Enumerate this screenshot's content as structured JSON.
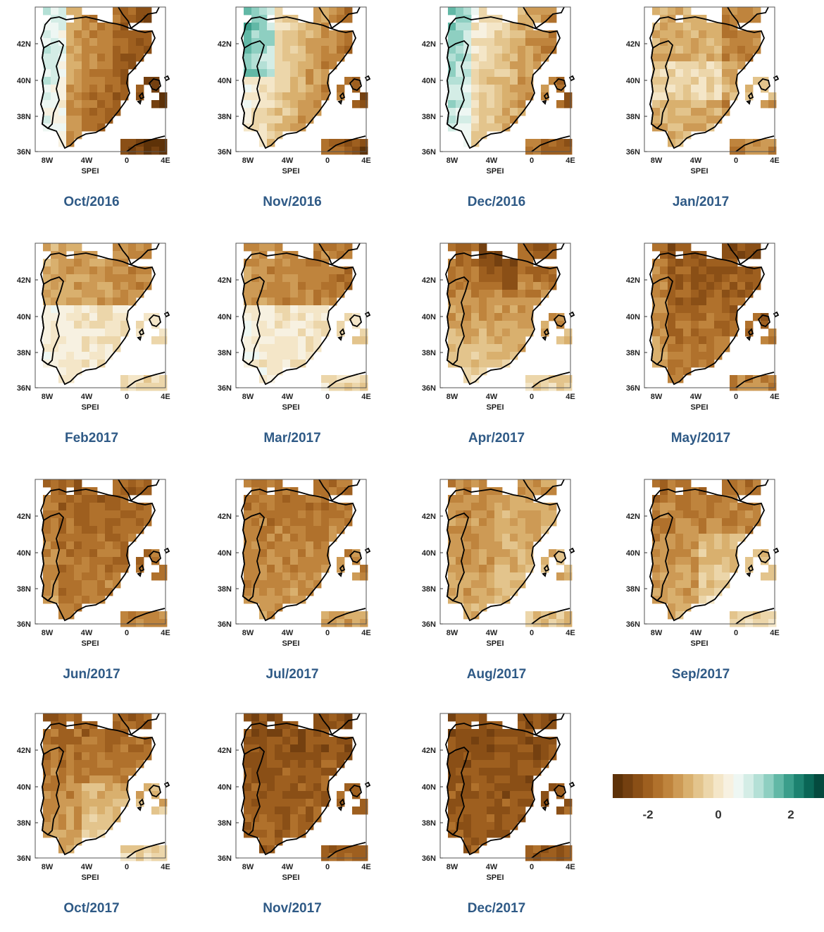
{
  "maps": [
    {
      "caption": "Oct/2016",
      "xlabel": "SPEI",
      "pattern": "oct16"
    },
    {
      "caption": "Nov/2016",
      "xlabel": "SPEI",
      "pattern": "nov16"
    },
    {
      "caption": "Dec/2016",
      "xlabel": "SPEI",
      "pattern": "dec16"
    },
    {
      "caption": "Jan/2017",
      "xlabel": "SPEI",
      "pattern": "jan17"
    },
    {
      "caption": "Feb2017",
      "xlabel": "SPEI",
      "pattern": "feb17"
    },
    {
      "caption": "Mar/2017",
      "xlabel": "SPEI",
      "pattern": "mar17"
    },
    {
      "caption": "Apr/2017",
      "xlabel": "SPEI",
      "pattern": "apr17"
    },
    {
      "caption": "May/2017",
      "xlabel": "SPEI",
      "pattern": "may17"
    },
    {
      "caption": "Jun/2017",
      "xlabel": "SPEI",
      "pattern": "jun17"
    },
    {
      "caption": "Jul/2017",
      "xlabel": "SPEI",
      "pattern": "jul17"
    },
    {
      "caption": "Aug/2017",
      "xlabel": "SPEI",
      "pattern": "aug17"
    },
    {
      "caption": "Sep/2017",
      "xlabel": "SPEI",
      "pattern": "sep17"
    },
    {
      "caption": "Oct/2017",
      "xlabel": "SPEI",
      "pattern": "oct17"
    },
    {
      "caption": "Nov/2017",
      "xlabel": "SPEI",
      "pattern": "nov17"
    },
    {
      "caption": "Dec/2017",
      "xlabel": "SPEI",
      "pattern": "dec17"
    }
  ],
  "axes": {
    "lat_ticks": [
      "42N",
      "40N",
      "38N",
      "36N"
    ],
    "lon_ticks": [
      "8W",
      "4W",
      "0",
      "4E"
    ]
  },
  "colorbar": {
    "ticks": [
      "-2",
      "0",
      "2"
    ],
    "colors": [
      "#5e3208",
      "#744010",
      "#8a4f16",
      "#9e5f1f",
      "#b0712c",
      "#bf843d",
      "#cd9a55",
      "#d9b06e",
      "#e3c48c",
      "#ecd6aa",
      "#f4e6c8",
      "#f7f1e1",
      "#eef7f3",
      "#d4ede6",
      "#b4e0d6",
      "#8ecfc1",
      "#62b8a6",
      "#3b9e8b",
      "#1d8270",
      "#0a6656",
      "#044a3e"
    ]
  }
}
